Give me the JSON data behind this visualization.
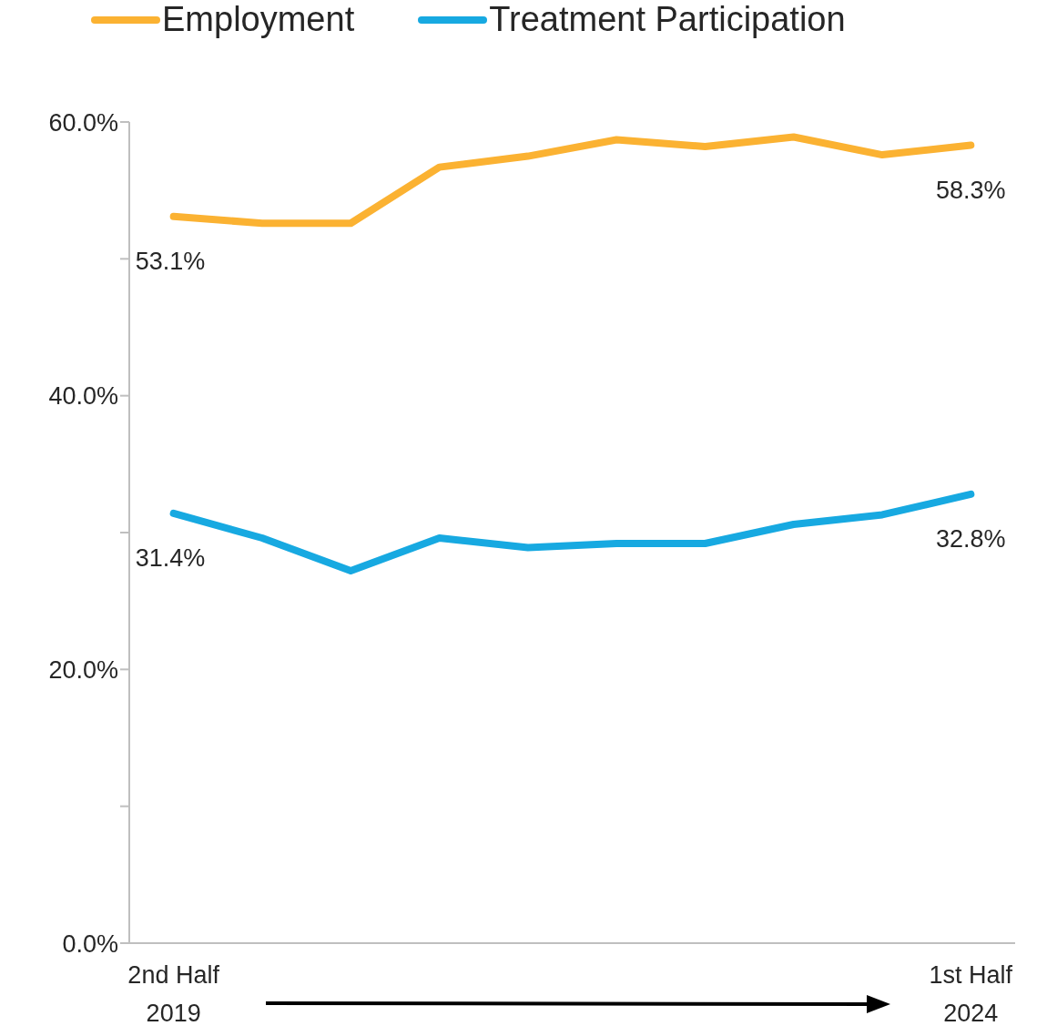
{
  "chart_data": {
    "type": "line",
    "categories": [
      "2nd Half 2019",
      null,
      null,
      null,
      null,
      null,
      null,
      null,
      null,
      "1st Half 2024"
    ],
    "series": [
      {
        "name": "Employment",
        "color": "#fbb232",
        "values": [
          53.1,
          52.6,
          52.6,
          56.7,
          57.5,
          58.7,
          58.2,
          58.9,
          57.6,
          58.3
        ],
        "value_labels": [
          "53.1%",
          null,
          null,
          null,
          null,
          null,
          null,
          null,
          null,
          "58.3%"
        ]
      },
      {
        "name": "Treatment Participation",
        "color": "#17a9e1",
        "values": [
          31.4,
          29.6,
          27.2,
          29.6,
          28.9,
          29.2,
          29.2,
          30.6,
          31.3,
          32.8
        ],
        "value_labels": [
          "31.4%",
          null,
          null,
          null,
          null,
          null,
          null,
          null,
          null,
          "32.8%"
        ]
      }
    ],
    "ylim": [
      0,
      60
    ],
    "yticks": [
      {
        "value": 0,
        "label": "0.0%"
      },
      {
        "value": 10,
        "label": null
      },
      {
        "value": 20,
        "label": "20.0%"
      },
      {
        "value": 30,
        "label": null
      },
      {
        "value": 40,
        "label": "40.0%"
      },
      {
        "value": 50,
        "label": null
      },
      {
        "value": 60,
        "label": "60.0%"
      }
    ],
    "legend": "top",
    "grid": false,
    "marker": "none",
    "line_style": "solid"
  }
}
